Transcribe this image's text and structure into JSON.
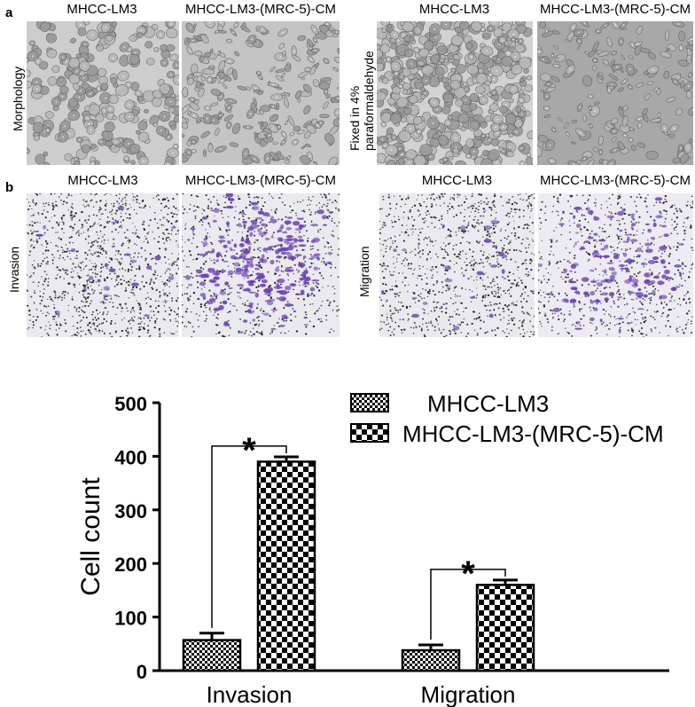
{
  "panel_a": {
    "label": "a",
    "left": {
      "side_label": "Morphology",
      "titles": [
        "MHCC-LM3",
        "MHCC-LM3-(MRC-5)-CM"
      ]
    },
    "right": {
      "side_label_lines": [
        "Fixed in 4%",
        "paraformaldehyde"
      ],
      "titles": [
        "MHCC-LM3",
        "MHCC-LM3-(MRC-5)-CM"
      ]
    }
  },
  "panel_b": {
    "label": "b",
    "left": {
      "side_label": "Invasion",
      "titles": [
        "MHCC-LM3",
        "MHCC-LM3-(MRC-5)-CM"
      ]
    },
    "right": {
      "side_label": "Migration",
      "titles": [
        "MHCC-LM3",
        "MHCC-LM3-(MRC-5)-CM"
      ]
    }
  },
  "colors": {
    "phase_bg": "#c8c8c8",
    "stain_purple": "#6a3fb5",
    "stain_bg": "#e9e9ef"
  },
  "chart_data": {
    "type": "bar",
    "categories": [
      "Invasion",
      "Migration"
    ],
    "series": [
      {
        "name": "MHCC-LM3",
        "values": [
          57,
          38
        ],
        "errors": [
          13,
          10
        ],
        "pattern": "fine-checker"
      },
      {
        "name": "MHCC-LM3-(MRC-5)-CM",
        "values": [
          390,
          160
        ],
        "errors": [
          9,
          9
        ],
        "pattern": "coarse-checker"
      }
    ],
    "ylabel": "Cell count",
    "xlabel": "",
    "ylim": [
      0,
      500
    ],
    "yticks": [
      0,
      100,
      200,
      300,
      400,
      500
    ],
    "significance": [
      "*",
      "*"
    ],
    "grid": false,
    "legend_position": "top-right"
  }
}
